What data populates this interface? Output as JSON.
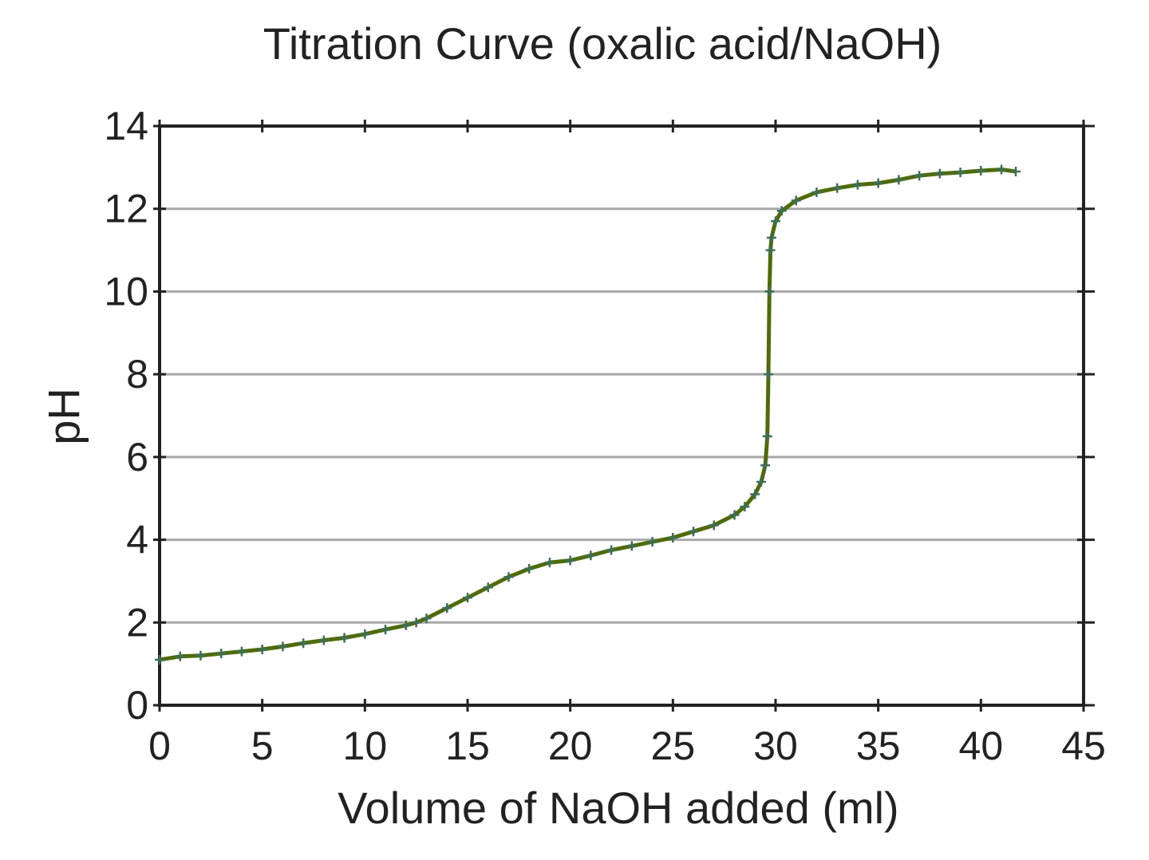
{
  "chart_data": {
    "type": "line",
    "title": "Titration Curve (oxalic acid/NaOH)",
    "xlabel": "Volume of NaOH added (ml)",
    "ylabel": "pH",
    "xlim": [
      0,
      45
    ],
    "ylim": [
      0,
      14
    ],
    "xticks": [
      "0",
      "5",
      "10",
      "15",
      "20",
      "25",
      "30",
      "35",
      "40",
      "45"
    ],
    "yticks": [
      "0",
      "2",
      "4",
      "6",
      "8",
      "10",
      "12",
      "14"
    ],
    "grid": "horizontal",
    "colors": {
      "line": "#4f6b0a",
      "marker": "#3d6e5a",
      "grid": "#a8a8a8",
      "axis": "#222222"
    },
    "series": [
      {
        "name": "pH",
        "x": [
          0,
          1,
          2,
          3,
          4,
          5,
          6,
          7,
          8,
          9,
          10,
          11,
          12,
          12.5,
          13,
          14,
          15,
          16,
          17,
          18,
          19,
          20,
          21,
          22,
          23,
          24,
          25,
          26,
          27,
          28,
          28.5,
          29,
          29.3,
          29.5,
          29.6,
          29.65,
          29.7,
          29.75,
          29.8,
          30,
          30.3,
          31,
          32,
          33,
          34,
          35,
          36,
          37,
          38,
          39,
          40,
          41,
          41.7
        ],
        "y": [
          1.1,
          1.18,
          1.2,
          1.25,
          1.3,
          1.35,
          1.42,
          1.5,
          1.57,
          1.63,
          1.72,
          1.83,
          1.93,
          2.0,
          2.1,
          2.35,
          2.6,
          2.85,
          3.1,
          3.3,
          3.45,
          3.5,
          3.62,
          3.75,
          3.85,
          3.95,
          4.05,
          4.2,
          4.35,
          4.6,
          4.8,
          5.1,
          5.4,
          5.8,
          6.5,
          8.0,
          10.0,
          11.0,
          11.3,
          11.7,
          11.95,
          12.2,
          12.4,
          12.5,
          12.58,
          12.62,
          12.7,
          12.8,
          12.85,
          12.88,
          12.92,
          12.95,
          12.9
        ]
      }
    ]
  }
}
